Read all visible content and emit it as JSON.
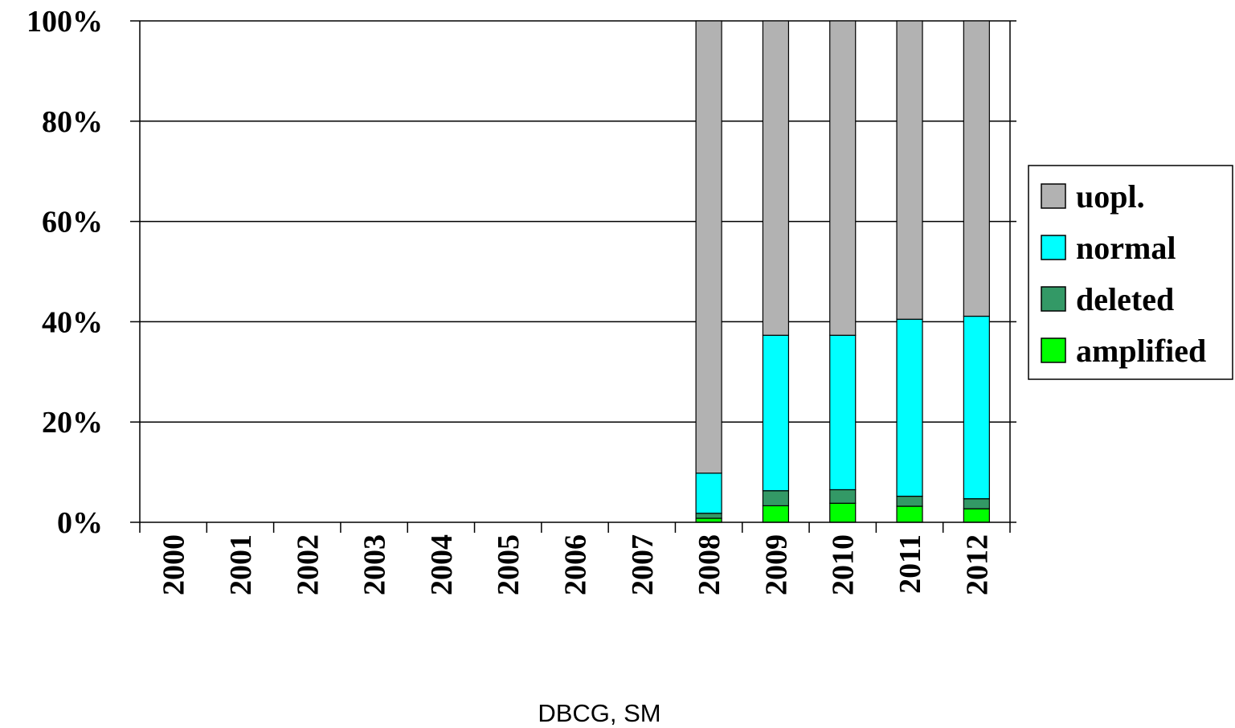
{
  "chart_data": {
    "type": "bar",
    "stacked": true,
    "percent_stacked": true,
    "categories": [
      "2000",
      "2001",
      "2002",
      "2003",
      "2004",
      "2005",
      "2006",
      "2007",
      "2008",
      "2009",
      "2010",
      "2011",
      "2012"
    ],
    "series": [
      {
        "name": "amplified",
        "color": "#00ff00",
        "values": [
          0,
          0,
          0,
          0,
          0,
          0,
          0,
          0,
          0.8,
          3.3,
          3.8,
          3.2,
          2.7
        ]
      },
      {
        "name": "deleted",
        "color": "#339966",
        "values": [
          0,
          0,
          0,
          0,
          0,
          0,
          0,
          0,
          1.0,
          3.0,
          2.7,
          2.0,
          2.0
        ]
      },
      {
        "name": "normal",
        "color": "#00ffff",
        "values": [
          0,
          0,
          0,
          0,
          0,
          0,
          0,
          0,
          8.0,
          31.0,
          30.8,
          35.3,
          36.4
        ]
      },
      {
        "name": "uopl.",
        "color": "#b2b2b2",
        "values": [
          0,
          0,
          0,
          0,
          0,
          0,
          0,
          0,
          90.2,
          62.7,
          62.7,
          59.5,
          58.9
        ]
      }
    ],
    "yticks": [
      "0%",
      "20%",
      "40%",
      "60%",
      "80%",
      "100%"
    ],
    "ylim": [
      0,
      100
    ],
    "grid": true,
    "legend_position": "right",
    "legend_order": [
      "uopl.",
      "normal",
      "deleted",
      "amplified"
    ]
  },
  "footer": "DBCG, SM"
}
